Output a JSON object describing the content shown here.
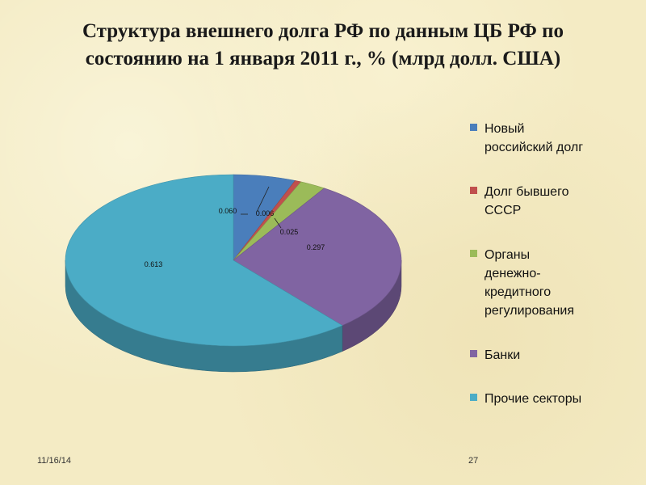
{
  "title_lines": [
    "Структура внешнего долга РФ по данным ЦБ РФ по",
    "состоянию на 1 января 2011 г., % (млрд долл. США)"
  ],
  "chart_data": {
    "type": "pie",
    "title": "Структура внешнего долга РФ по данным ЦБ РФ по состоянию на 1 января 2011 г., % (млрд долл. США)",
    "categories": [
      "Новый российский долг",
      "Долг бывшего СССР",
      "Органы денежно-кредитного регулирования",
      "Банки",
      "Прочие секторы"
    ],
    "values": [
      0.06,
      0.006,
      0.025,
      0.297,
      0.613
    ],
    "value_labels": [
      "0.060",
      "0.006",
      "0.025",
      "0.297",
      "0.613"
    ],
    "colors": [
      "#4a7ebb",
      "#c0504d",
      "#9bbb59",
      "#8064a2",
      "#4bacc6"
    ],
    "legend_position": "right",
    "three_d": true
  },
  "legend": {
    "items": [
      {
        "lines": [
          "Новый",
          "российский долг"
        ],
        "color": "#4a7ebb"
      },
      {
        "lines": [
          "Долг бывшего",
          "СССР"
        ],
        "color": "#c0504d"
      },
      {
        "lines": [
          "Органы",
          "денежно-",
          "кредитного",
          "регулирования"
        ],
        "color": "#9bbb59"
      },
      {
        "lines": [
          "Банки"
        ],
        "color": "#8064a2"
      },
      {
        "lines": [
          "Прочие секторы"
        ],
        "color": "#4bacc6"
      }
    ]
  },
  "footer": {
    "date": "11/16/14",
    "page": "27"
  }
}
